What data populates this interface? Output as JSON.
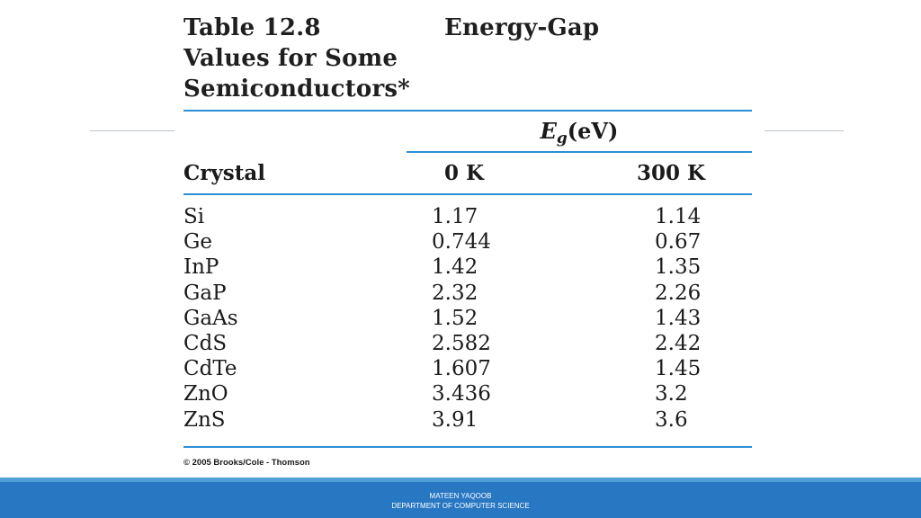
{
  "title": {
    "table_number": "Table 12.8",
    "heading_rest": "Energy-Gap",
    "line2": "Values for Some",
    "line3": "Semiconductors*"
  },
  "header": {
    "eg_symbol": "E",
    "eg_subscript": "g",
    "eg_unit": "(eV)",
    "crystal": "Crystal",
    "col_0k": "0 K",
    "col_300k": "300 K"
  },
  "rows": [
    {
      "crystal": "Si",
      "gap_0k": "1.17",
      "gap_300k": "1.14"
    },
    {
      "crystal": "Ge",
      "gap_0k": "0.744",
      "gap_300k": "0.67"
    },
    {
      "crystal": "InP",
      "gap_0k": "1.42",
      "gap_300k": "1.35"
    },
    {
      "crystal": "GaP",
      "gap_0k": "2.32",
      "gap_300k": "2.26"
    },
    {
      "crystal": "GaAs",
      "gap_0k": "1.52",
      "gap_300k": "1.43"
    },
    {
      "crystal": "CdS",
      "gap_0k": "2.582",
      "gap_300k": "2.42"
    },
    {
      "crystal": "CdTe",
      "gap_0k": "1.607",
      "gap_300k": "1.45"
    },
    {
      "crystal": "ZnO",
      "gap_0k": "3.436",
      "gap_300k": "3.2"
    },
    {
      "crystal": "ZnS",
      "gap_0k": "3.91",
      "gap_300k": "3.6"
    }
  ],
  "copyright": "© 2005 Brooks/Cole - Thomson",
  "footer": {
    "author": "MATEEN YAQOOB",
    "department": "DEPARTMENT OF COMPUTER SCIENCE"
  },
  "colors": {
    "rule": "#2a8fd6",
    "footer_bar": "#2777c2",
    "footer_stripe": "#4f9fd9"
  }
}
